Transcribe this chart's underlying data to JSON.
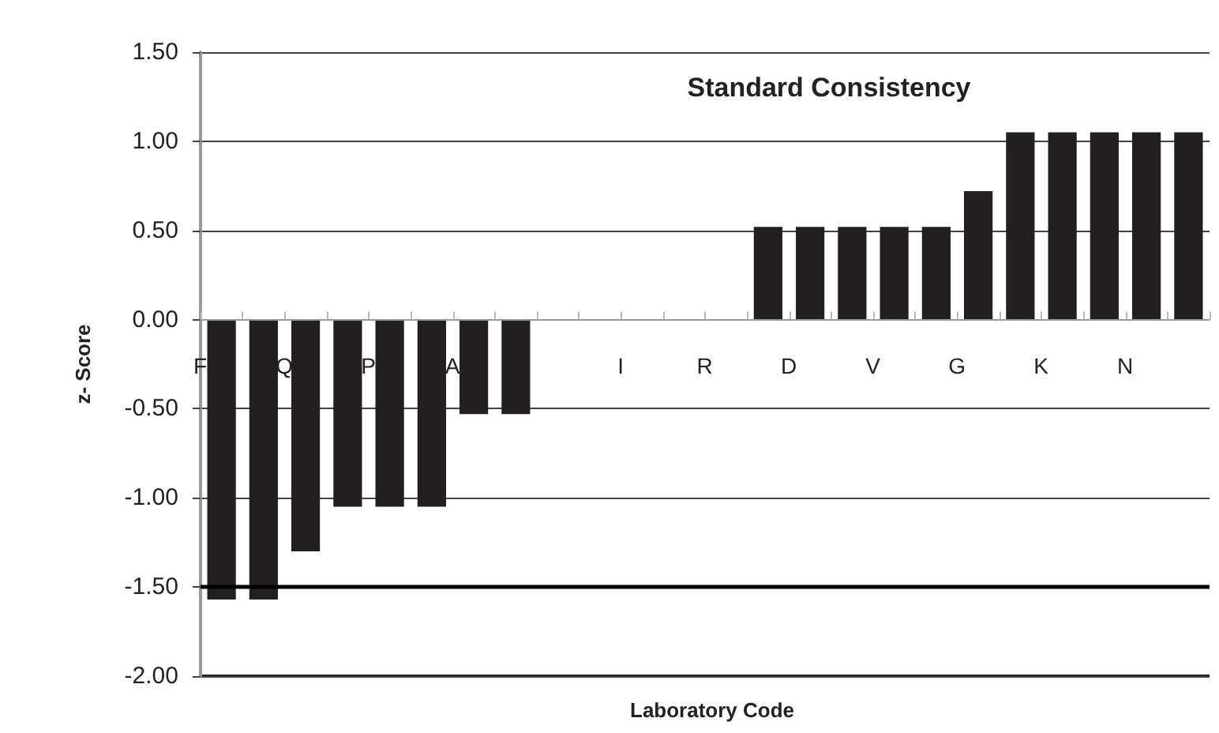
{
  "chart_data": {
    "type": "bar",
    "title": "Standard Consistency",
    "xlabel": "Laboratory Code",
    "ylabel": "z- Score",
    "categories": [
      "F",
      null,
      "Q",
      null,
      "P",
      null,
      "A",
      null,
      null,
      null,
      "I",
      null,
      "R",
      null,
      "D",
      null,
      "V",
      null,
      "G",
      null,
      "K",
      null,
      "N",
      null
    ],
    "values": [
      -1.57,
      -1.57,
      -1.3,
      -1.05,
      -1.05,
      -1.05,
      -0.53,
      -0.53,
      0,
      0,
      0,
      0,
      0,
      0.52,
      0.52,
      0.52,
      0.52,
      0.52,
      0.72,
      1.05,
      1.05,
      1.05,
      1.05,
      1.05
    ],
    "color": "#231f20",
    "ylim": [
      -2,
      1.5
    ],
    "yticks": [
      {
        "value": -2,
        "label": "-2.00"
      },
      {
        "value": -1.5,
        "label": "-1.50"
      },
      {
        "value": -1,
        "label": "-1.00"
      },
      {
        "value": -0.5,
        "label": "-0.50"
      },
      {
        "value": 0,
        "label": "0.00"
      },
      {
        "value": 0.5,
        "label": "0.50"
      },
      {
        "value": 1,
        "label": "1.00"
      },
      {
        "value": 1.5,
        "label": "1.50"
      }
    ],
    "grid": "y",
    "ref_lines": [
      {
        "axis": "y",
        "value": -1.5,
        "color": "#000000"
      }
    ]
  }
}
